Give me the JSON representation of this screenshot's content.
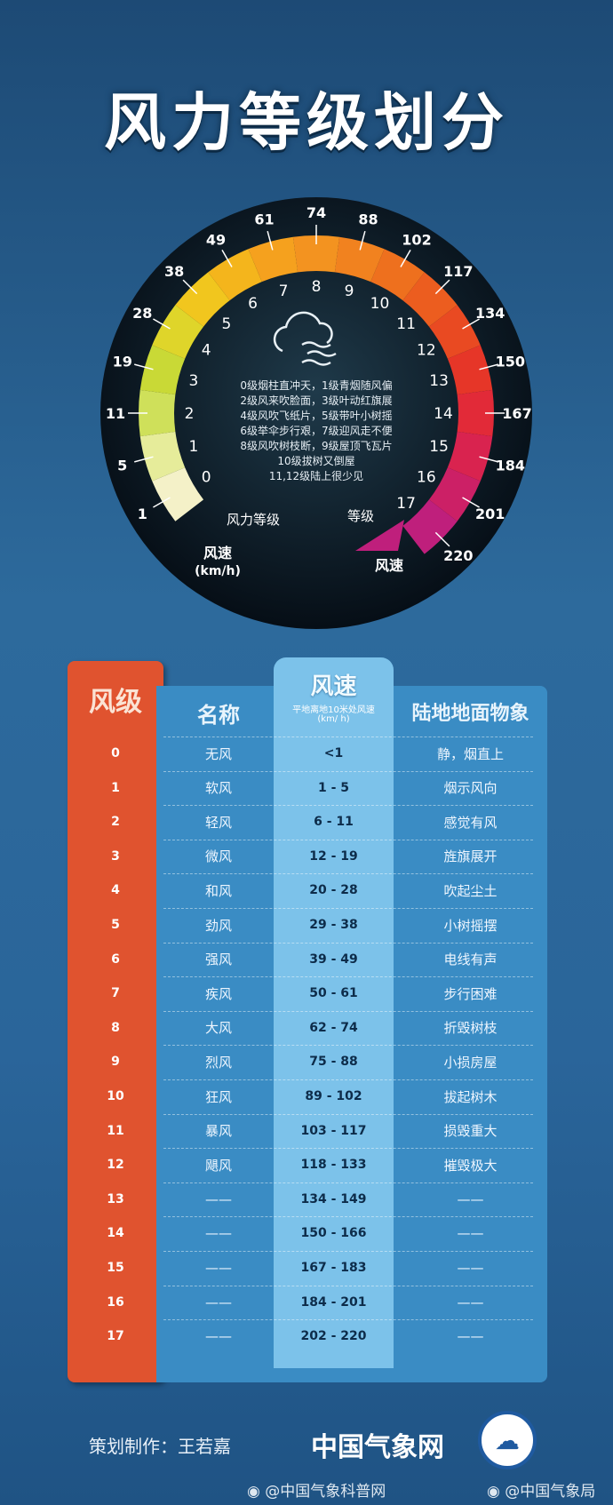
{
  "title": "风力等级划分",
  "gauge": {
    "speed_labels": [
      "1",
      "5",
      "11",
      "19",
      "28",
      "38",
      "49",
      "61",
      "74",
      "88",
      "102",
      "117",
      "134",
      "150",
      "167",
      "184",
      "201",
      "220"
    ],
    "level_labels": [
      "0",
      "1",
      "2",
      "3",
      "4",
      "5",
      "6",
      "7",
      "8",
      "9",
      "10",
      "11",
      "12",
      "13",
      "14",
      "15",
      "16",
      "17"
    ],
    "left_caption_level": "风力等级",
    "left_caption_speed": "风速",
    "left_caption_unit": "(km/h)",
    "right_caption_level": "等级",
    "right_caption_speed": "风速",
    "weather_icon": "cloud-wind-icon",
    "rhyme": [
      "0级烟柱直冲天，1级青烟随风偏",
      "2级风来吹脸面，3级叶动红旗展",
      "4级风吹飞纸片，5级带叶小树摇",
      "6级举伞步行艰，7级迎风走不便",
      "8级风吹树枝断，9级屋顶飞瓦片",
      "10级拔树又倒屋",
      "11,12级陆上很少见"
    ],
    "band_colors": [
      "#f4f1c8",
      "#e6ec9a",
      "#cfe05a",
      "#c9d936",
      "#dfd52a",
      "#f1c61e",
      "#f4b51c",
      "#f5a11e",
      "#f39320",
      "#f1821f",
      "#ee701e",
      "#ec5d1f",
      "#e94a22",
      "#e63628",
      "#e22a38",
      "#d9234f",
      "#cc2066",
      "#bf1f7c"
    ]
  },
  "table": {
    "headers": {
      "level": "风级",
      "name": "名称",
      "speed": "风速",
      "speed_sub": "平地离地10米处风速",
      "speed_unit": "(km/ h)",
      "land": "陆地地面物象"
    },
    "rows": [
      [
        "0",
        "无风",
        "<1",
        "静，烟直上"
      ],
      [
        "1",
        "软风",
        "1 - 5",
        "烟示风向"
      ],
      [
        "2",
        "轻风",
        "6 - 11",
        "感觉有风"
      ],
      [
        "3",
        "微风",
        "12 - 19",
        "旌旗展开"
      ],
      [
        "4",
        "和风",
        "20 - 28",
        "吹起尘土"
      ],
      [
        "5",
        "劲风",
        "29 - 38",
        "小树摇摆"
      ],
      [
        "6",
        "强风",
        "39 - 49",
        "电线有声"
      ],
      [
        "7",
        "疾风",
        "50 - 61",
        "步行困难"
      ],
      [
        "8",
        "大风",
        "62 - 74",
        "折毁树枝"
      ],
      [
        "9",
        "烈风",
        "75 - 88",
        "小损房屋"
      ],
      [
        "10",
        "狂风",
        "89 - 102",
        "拔起树木"
      ],
      [
        "11",
        "暴风",
        "103 - 117",
        "损毁重大"
      ],
      [
        "12",
        "飓风",
        "118 - 133",
        "摧毁极大"
      ],
      [
        "13",
        "——",
        "134 - 149",
        "——"
      ],
      [
        "14",
        "——",
        "150 - 166",
        "——"
      ],
      [
        "15",
        "——",
        "167 - 183",
        "——"
      ],
      [
        "16",
        "——",
        "184 - 201",
        "——"
      ],
      [
        "17",
        "——",
        "202 - 220",
        "——"
      ]
    ]
  },
  "footer": {
    "credit": "策划制作：王若嘉",
    "brand": "中国气象网",
    "weibo1": "@中国气象科普网",
    "weibo2": "@中国气象局"
  },
  "colors": {
    "red": "#e0532f",
    "blue": "#3a8cc4",
    "speed": "#7cc2ea",
    "gauge_bg": "#0d1c28"
  }
}
